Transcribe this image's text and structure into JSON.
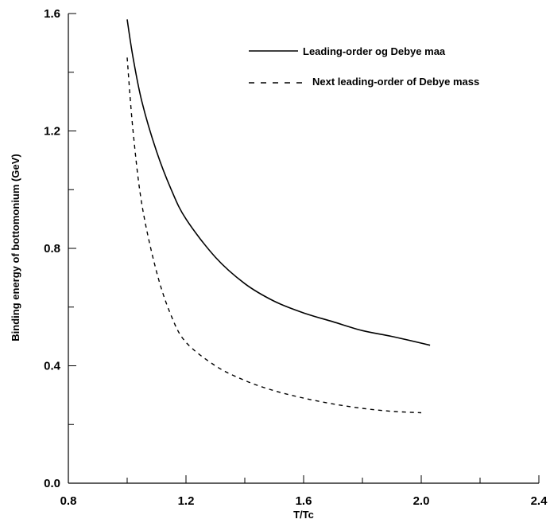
{
  "chart_data": {
    "type": "line",
    "title": "",
    "xlabel": "T/Tc",
    "ylabel": "Binding energy of bottomonium (GeV)",
    "xlim": [
      0.8,
      2.4
    ],
    "ylim": [
      0.0,
      1.6
    ],
    "x_ticks": [
      "0.8",
      "1.2",
      "1.6",
      "2.0",
      "2.4"
    ],
    "y_ticks": [
      "0.0",
      "0.4",
      "0.8",
      "1.2",
      "1.6"
    ],
    "grid": false,
    "legend_position": "top-right",
    "series": [
      {
        "name": "Leading-order og Debye maa",
        "style": "solid",
        "color": "#000000",
        "x": [
          1.0,
          1.02,
          1.05,
          1.1,
          1.15,
          1.2,
          1.3,
          1.4,
          1.5,
          1.6,
          1.7,
          1.8,
          1.9,
          2.03
        ],
        "y": [
          1.58,
          1.45,
          1.3,
          1.13,
          1.0,
          0.9,
          0.77,
          0.68,
          0.62,
          0.58,
          0.55,
          0.52,
          0.5,
          0.47
        ]
      },
      {
        "name": "Next leading-order of Debye mass",
        "style": "dashed",
        "color": "#000000",
        "x": [
          1.0,
          1.02,
          1.05,
          1.1,
          1.15,
          1.2,
          1.3,
          1.4,
          1.5,
          1.6,
          1.7,
          1.8,
          1.9,
          2.0
        ],
        "y": [
          1.45,
          1.2,
          0.95,
          0.72,
          0.57,
          0.48,
          0.4,
          0.35,
          0.315,
          0.29,
          0.27,
          0.255,
          0.245,
          0.24
        ]
      }
    ]
  }
}
